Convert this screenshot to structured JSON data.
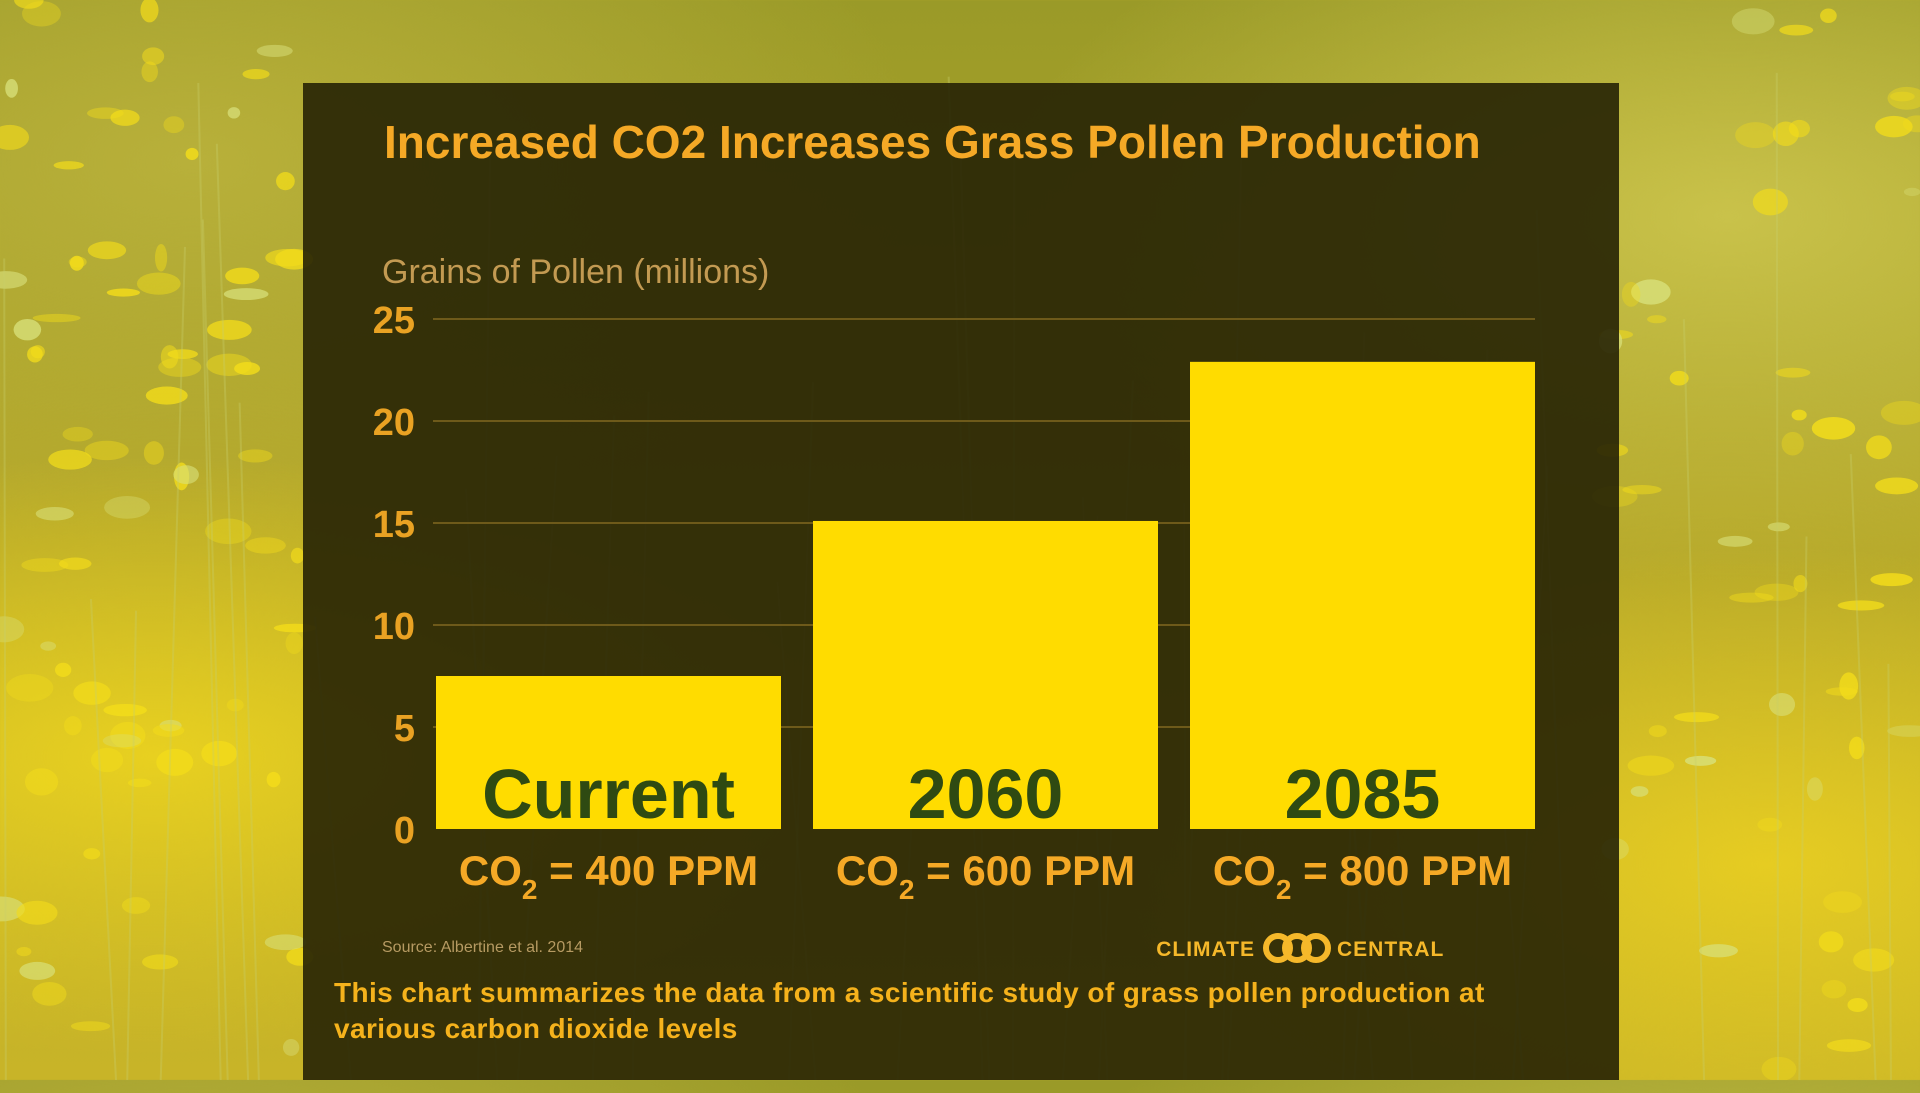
{
  "colors": {
    "accent": "#f5a926",
    "bar": "#ffdc00",
    "category_label": "#2f4a12",
    "panel": "#262204"
  },
  "chart_data": {
    "type": "bar",
    "title": "Increased CO2 Increases Grass Pollen Production",
    "ylabel": "Grains of Pollen (millions)",
    "xlabel": "",
    "ylim": [
      0,
      25
    ],
    "yticks": [
      "0",
      "5",
      "10",
      "15",
      "20",
      "25"
    ],
    "grid": true,
    "categories": [
      "Current",
      "2060",
      "2085"
    ],
    "values": [
      7.5,
      15.1,
      22.9
    ],
    "sublabels": [
      {
        "prefix": "CO",
        "subscript": "2",
        "suffix": " = 400 PPM"
      },
      {
        "prefix": "CO",
        "subscript": "2",
        "suffix": " = 600 PPM"
      },
      {
        "prefix": "CO",
        "subscript": "2",
        "suffix": " = 800 PPM"
      }
    ]
  },
  "source": "Source: Albertine et al. 2014",
  "logo": {
    "left": "CLIMATE",
    "right": "CENTRAL"
  },
  "caption": "This chart summarizes the data from a scientific study of grass pollen production at various carbon dioxide levels"
}
